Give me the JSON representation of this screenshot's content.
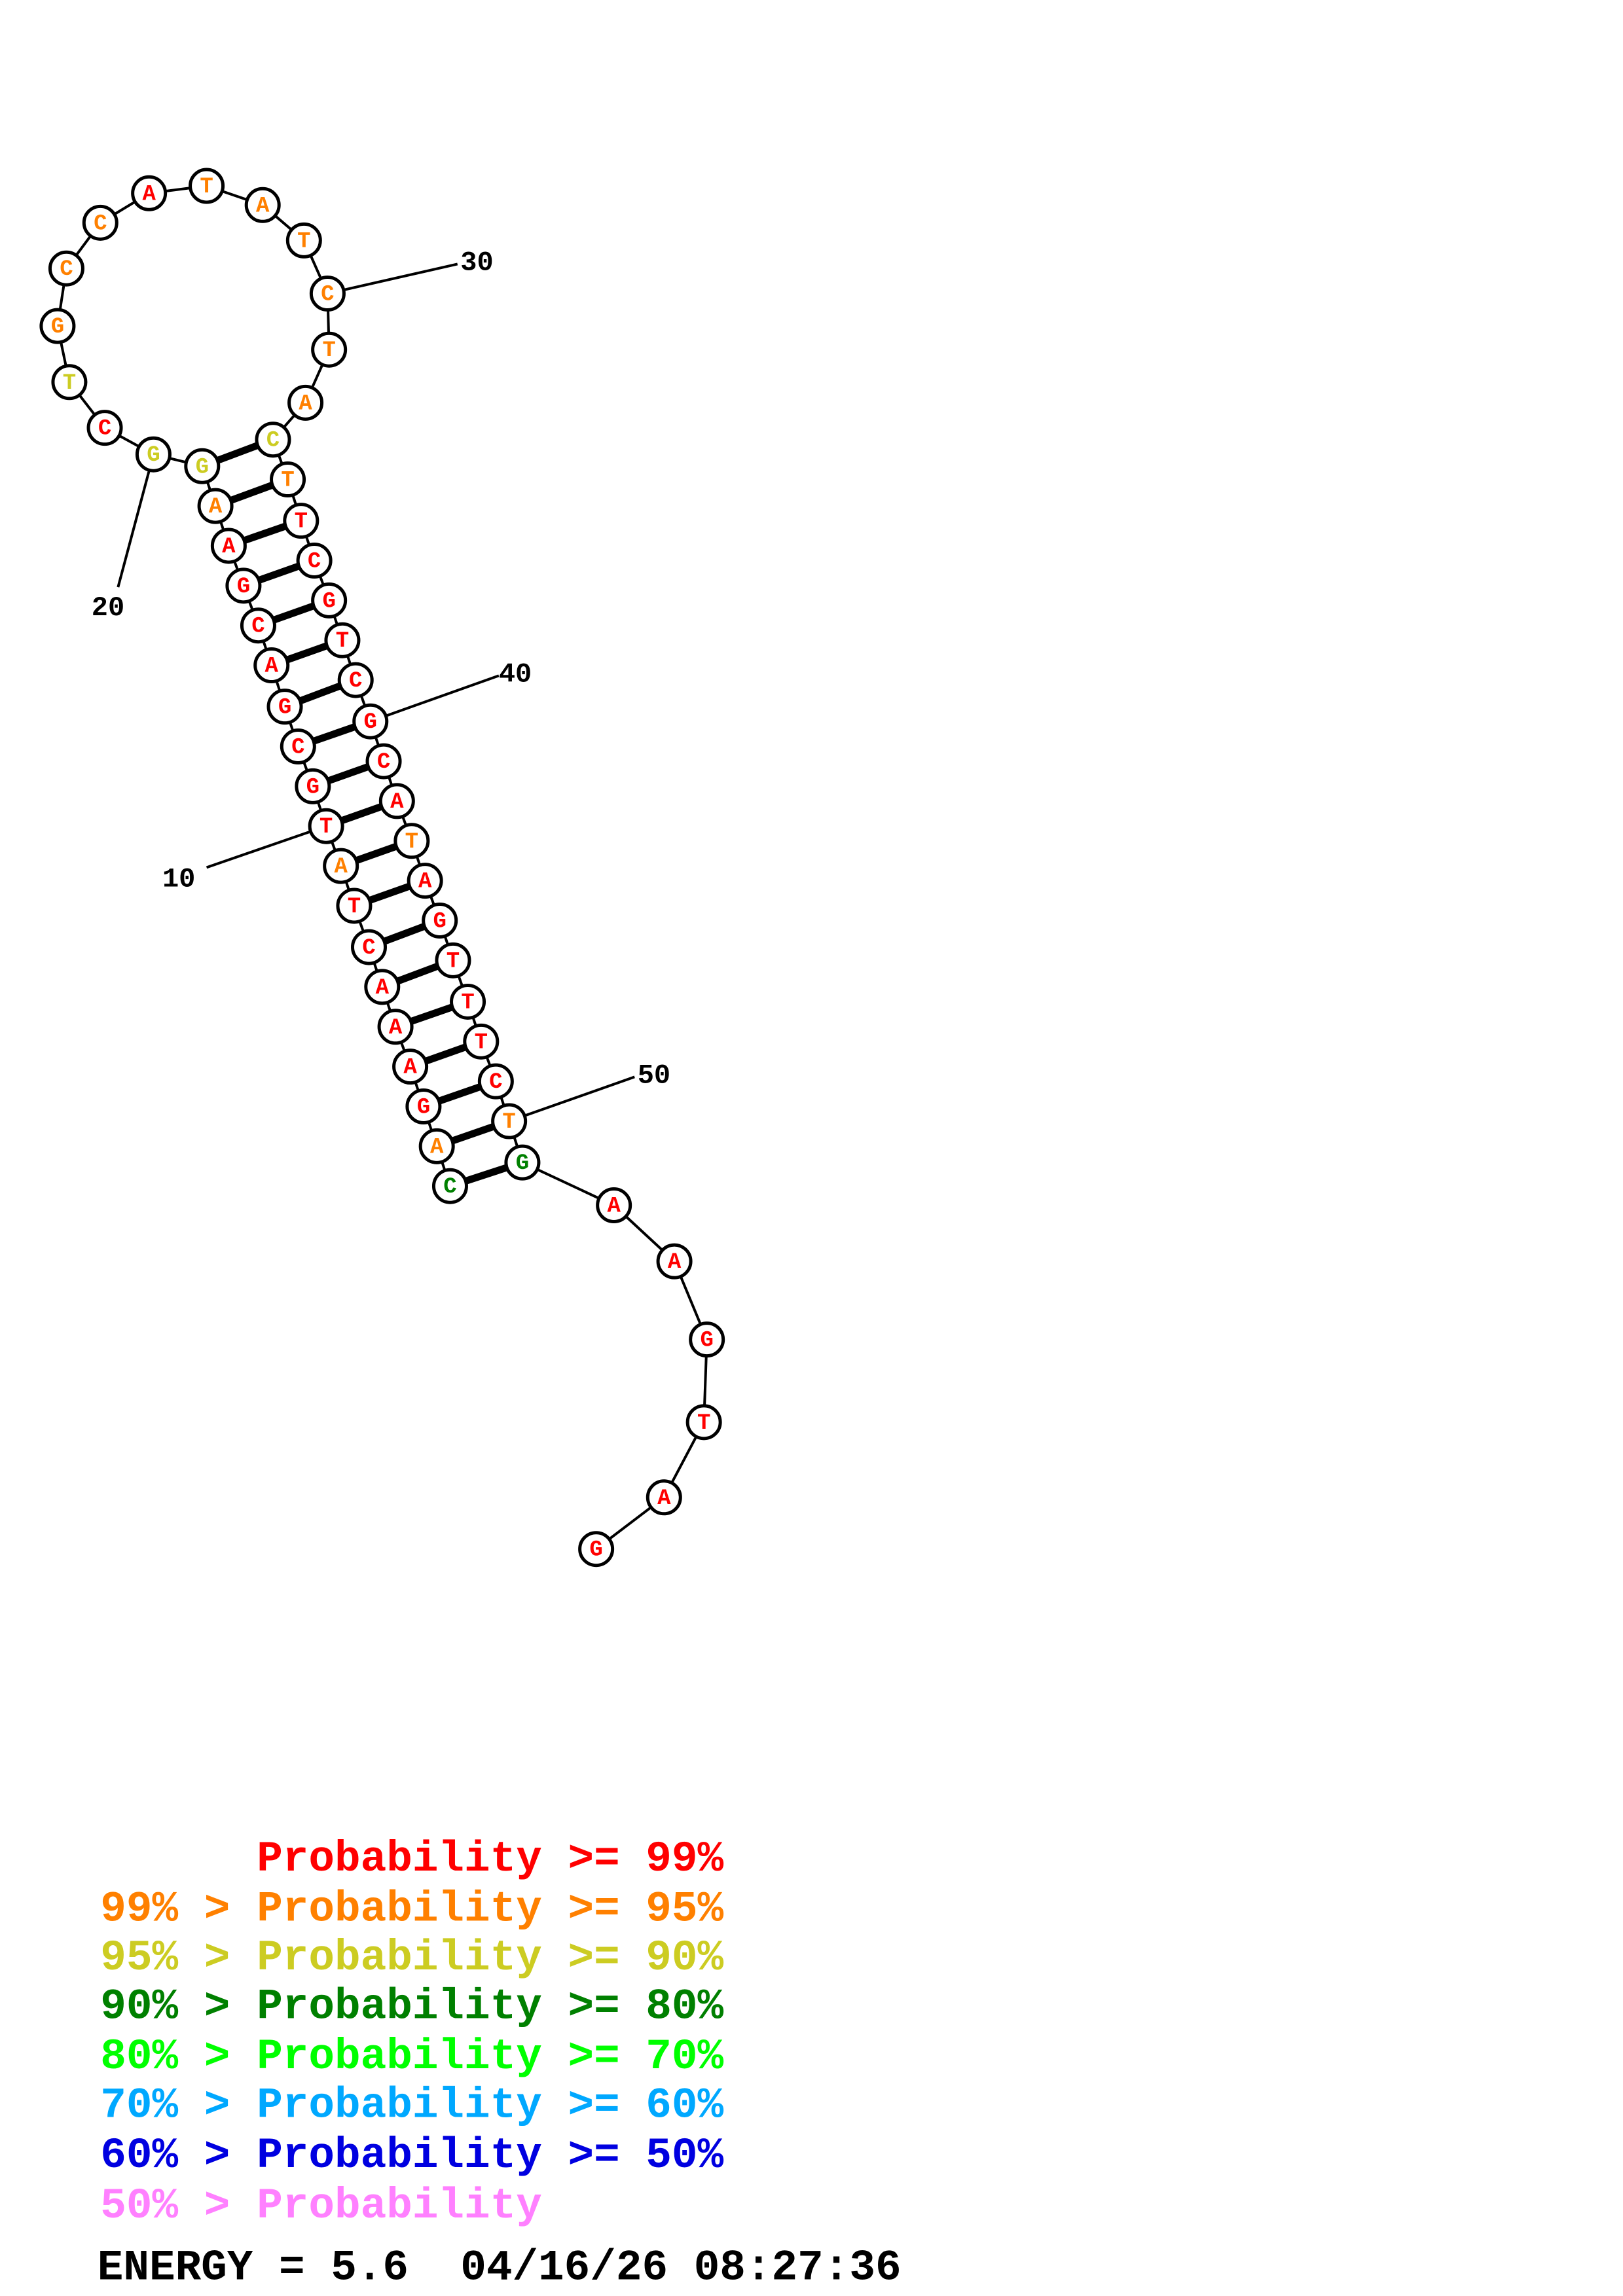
{
  "diagram": {
    "type": "rna-secondary-structure",
    "sequence": "CAGAAACTATGCGACGAAGGCTGCCATATCTACTTCGTCGCATAGTTTCTGAAGTAG",
    "levels": [
      "g",
      "o",
      "r",
      "r",
      "r",
      "r",
      "r",
      "r",
      "o",
      "r",
      "r",
      "r",
      "r",
      "r",
      "r",
      "r",
      "r",
      "o",
      "y",
      "y",
      "r",
      "y",
      "o",
      "o",
      "o",
      "r",
      "o",
      "o",
      "o",
      "o",
      "o",
      "o",
      "y",
      "o",
      "r",
      "r",
      "r",
      "r",
      "r",
      "r",
      "r",
      "r",
      "o",
      "r",
      "r",
      "r",
      "r",
      "r",
      "r",
      "o",
      "g",
      "r",
      "r",
      "r",
      "r",
      "r",
      "r"
    ],
    "pairs": [
      [
        1,
        51
      ],
      [
        2,
        50
      ],
      [
        3,
        49
      ],
      [
        4,
        48
      ],
      [
        5,
        47
      ],
      [
        6,
        46
      ],
      [
        7,
        45
      ],
      [
        8,
        44
      ],
      [
        9,
        43
      ],
      [
        10,
        42
      ],
      [
        11,
        41
      ],
      [
        12,
        40
      ],
      [
        13,
        39
      ],
      [
        14,
        38
      ],
      [
        15,
        37
      ],
      [
        16,
        36
      ],
      [
        17,
        35
      ],
      [
        18,
        34
      ],
      [
        19,
        33
      ]
    ],
    "position_labels": [
      {
        "position": 10,
        "text": "10"
      },
      {
        "position": 20,
        "text": "20"
      },
      {
        "position": 30,
        "text": "30"
      },
      {
        "position": 40,
        "text": "40"
      },
      {
        "position": 50,
        "text": "50"
      }
    ]
  },
  "colors": {
    "r": "#ff0000",
    "o": "#ff8000",
    "y": "#cccc22",
    "g": "#008000",
    "lg": "#00ff00",
    "c": "#00a8ff",
    "b": "#0000e0",
    "p": "#ff80ff"
  },
  "legend": {
    "rows": [
      {
        "prefix": "",
        "main": "Probability >= 99%",
        "color": "#ff0000"
      },
      {
        "prefix": "99% >",
        "main": "Probability >= 95%",
        "color": "#ff8000"
      },
      {
        "prefix": "95% >",
        "main": "Probability >= 90%",
        "color": "#cccc22"
      },
      {
        "prefix": "90% >",
        "main": "Probability >= 80%",
        "color": "#008000"
      },
      {
        "prefix": "80% >",
        "main": "Probability >= 70%",
        "color": "#00ff00"
      },
      {
        "prefix": "70% >",
        "main": "Probability >= 60%",
        "color": "#00a8ff"
      },
      {
        "prefix": "60% >",
        "main": "Probability >= 50%",
        "color": "#0000e0"
      },
      {
        "prefix": "50% >",
        "main": "Probability",
        "color": "#ff80ff"
      }
    ],
    "energy_line": "ENERGY = 5.6  04/16/26 08:27:36"
  }
}
